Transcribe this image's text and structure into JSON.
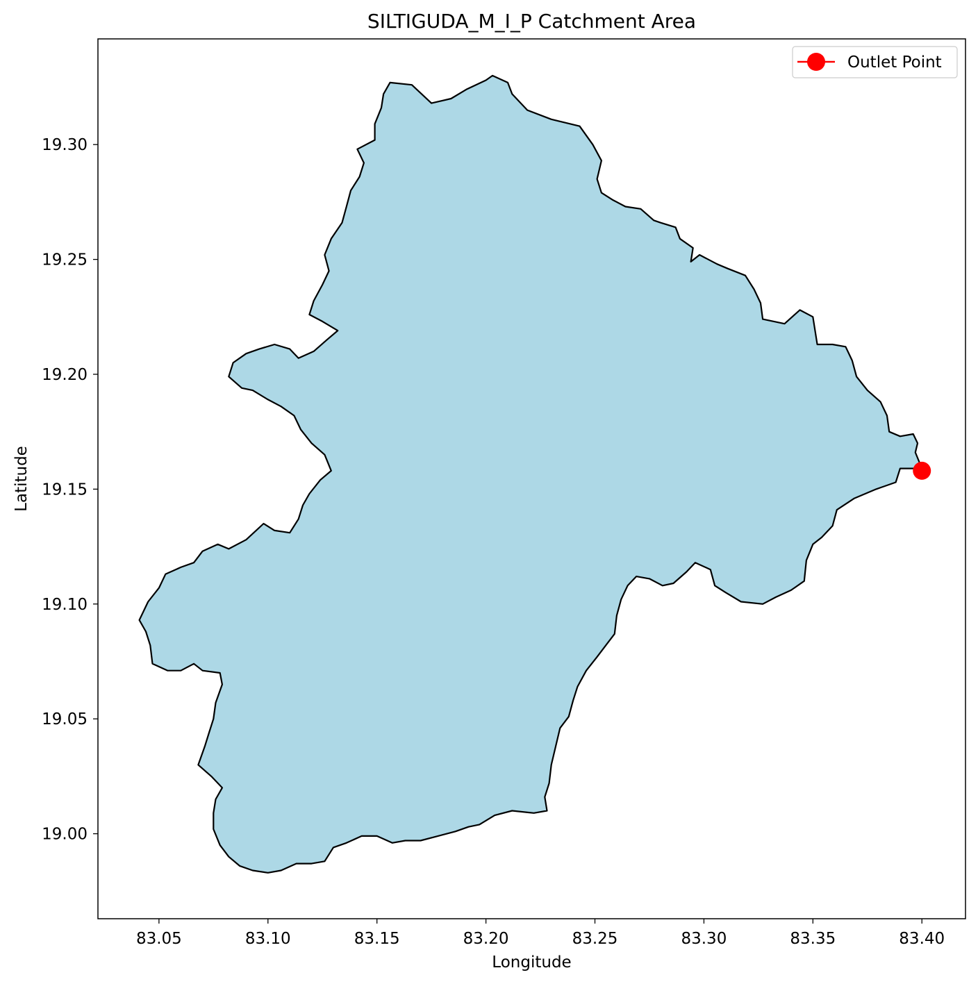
{
  "chart_data": {
    "type": "map",
    "title": "SILTIGUDA_M_I_P Catchment Area",
    "xlabel": "Longitude",
    "ylabel": "Latitude",
    "xlim": [
      83.022,
      83.42
    ],
    "ylim": [
      18.963,
      19.346
    ],
    "xticks": [
      83.05,
      83.1,
      83.15,
      83.2,
      83.25,
      83.3,
      83.35,
      83.4
    ],
    "xtick_labels": [
      "83.05",
      "83.10",
      "83.15",
      "83.20",
      "83.25",
      "83.30",
      "83.35",
      "83.40"
    ],
    "yticks": [
      19.0,
      19.05,
      19.1,
      19.15,
      19.2,
      19.25,
      19.3
    ],
    "ytick_labels": [
      "19.00",
      "19.05",
      "19.10",
      "19.15",
      "19.20",
      "19.25",
      "19.30"
    ],
    "grid": false,
    "legend": {
      "position": "top-right",
      "entries": [
        "Outlet Point"
      ]
    },
    "catchment": {
      "fill": "#add8e6",
      "edge": "#000000",
      "boundary": [
        [
          83.156,
          19.327
        ],
        [
          83.166,
          19.326
        ],
        [
          83.175,
          19.318
        ],
        [
          83.184,
          19.32
        ],
        [
          83.191,
          19.324
        ],
        [
          83.2,
          19.328
        ],
        [
          83.203,
          19.33
        ],
        [
          83.21,
          19.327
        ],
        [
          83.212,
          19.322
        ],
        [
          83.219,
          19.315
        ],
        [
          83.23,
          19.311
        ],
        [
          83.243,
          19.308
        ],
        [
          83.249,
          19.3
        ],
        [
          83.253,
          19.293
        ],
        [
          83.251,
          19.285
        ],
        [
          83.253,
          19.279
        ],
        [
          83.258,
          19.276
        ],
        [
          83.264,
          19.273
        ],
        [
          83.271,
          19.272
        ],
        [
          83.277,
          19.267
        ],
        [
          83.28,
          19.266
        ],
        [
          83.287,
          19.264
        ],
        [
          83.289,
          19.259
        ],
        [
          83.295,
          19.255
        ],
        [
          83.294,
          19.249
        ],
        [
          83.298,
          19.252
        ],
        [
          83.306,
          19.248
        ],
        [
          83.311,
          19.246
        ],
        [
          83.319,
          19.243
        ],
        [
          83.323,
          19.237
        ],
        [
          83.326,
          19.231
        ],
        [
          83.327,
          19.224
        ],
        [
          83.337,
          19.222
        ],
        [
          83.344,
          19.228
        ],
        [
          83.35,
          19.225
        ],
        [
          83.352,
          19.213
        ],
        [
          83.359,
          19.213
        ],
        [
          83.365,
          19.212
        ],
        [
          83.368,
          19.206
        ],
        [
          83.37,
          19.199
        ],
        [
          83.375,
          19.193
        ],
        [
          83.381,
          19.188
        ],
        [
          83.384,
          19.182
        ],
        [
          83.385,
          19.175
        ],
        [
          83.39,
          19.173
        ],
        [
          83.396,
          19.174
        ],
        [
          83.398,
          19.17
        ],
        [
          83.397,
          19.166
        ],
        [
          83.4,
          19.159
        ],
        [
          83.39,
          19.159
        ],
        [
          83.388,
          19.153
        ],
        [
          83.379,
          19.15
        ],
        [
          83.369,
          19.146
        ],
        [
          83.361,
          19.141
        ],
        [
          83.359,
          19.134
        ],
        [
          83.354,
          19.129
        ],
        [
          83.35,
          19.126
        ],
        [
          83.347,
          19.119
        ],
        [
          83.346,
          19.11
        ],
        [
          83.34,
          19.106
        ],
        [
          83.333,
          19.103
        ],
        [
          83.327,
          19.1
        ],
        [
          83.317,
          19.101
        ],
        [
          83.31,
          19.105
        ],
        [
          83.305,
          19.108
        ],
        [
          83.303,
          19.115
        ],
        [
          83.296,
          19.118
        ],
        [
          83.292,
          19.114
        ],
        [
          83.286,
          19.109
        ],
        [
          83.281,
          19.108
        ],
        [
          83.275,
          19.111
        ],
        [
          83.269,
          19.112
        ],
        [
          83.265,
          19.108
        ],
        [
          83.262,
          19.102
        ],
        [
          83.26,
          19.095
        ],
        [
          83.259,
          19.087
        ],
        [
          83.255,
          19.082
        ],
        [
          83.251,
          19.077
        ],
        [
          83.246,
          19.071
        ],
        [
          83.242,
          19.064
        ],
        [
          83.24,
          19.058
        ],
        [
          83.238,
          19.051
        ],
        [
          83.234,
          19.046
        ],
        [
          83.232,
          19.038
        ],
        [
          83.23,
          19.03
        ],
        [
          83.229,
          19.022
        ],
        [
          83.227,
          19.016
        ],
        [
          83.228,
          19.01
        ],
        [
          83.222,
          19.009
        ],
        [
          83.212,
          19.01
        ],
        [
          83.204,
          19.008
        ],
        [
          83.197,
          19.004
        ],
        [
          83.192,
          19.003
        ],
        [
          83.186,
          19.001
        ],
        [
          83.178,
          18.999
        ],
        [
          83.17,
          18.997
        ],
        [
          83.163,
          18.997
        ],
        [
          83.157,
          18.996
        ],
        [
          83.15,
          18.999
        ],
        [
          83.143,
          18.999
        ],
        [
          83.136,
          18.996
        ],
        [
          83.13,
          18.994
        ],
        [
          83.126,
          18.988
        ],
        [
          83.12,
          18.987
        ],
        [
          83.113,
          18.987
        ],
        [
          83.106,
          18.984
        ],
        [
          83.1,
          18.983
        ],
        [
          83.093,
          18.984
        ],
        [
          83.087,
          18.986
        ],
        [
          83.082,
          18.99
        ],
        [
          83.078,
          18.995
        ],
        [
          83.075,
          19.002
        ],
        [
          83.075,
          19.009
        ],
        [
          83.076,
          19.015
        ],
        [
          83.079,
          19.02
        ],
        [
          83.074,
          19.025
        ],
        [
          83.068,
          19.03
        ],
        [
          83.071,
          19.038
        ],
        [
          83.073,
          19.044
        ],
        [
          83.075,
          19.05
        ],
        [
          83.076,
          19.057
        ],
        [
          83.079,
          19.065
        ],
        [
          83.078,
          19.07
        ],
        [
          83.07,
          19.071
        ],
        [
          83.066,
          19.074
        ],
        [
          83.06,
          19.071
        ],
        [
          83.054,
          19.071
        ],
        [
          83.047,
          19.074
        ],
        [
          83.046,
          19.082
        ],
        [
          83.044,
          19.088
        ],
        [
          83.041,
          19.093
        ],
        [
          83.045,
          19.101
        ],
        [
          83.05,
          19.107
        ],
        [
          83.053,
          19.113
        ],
        [
          83.06,
          19.116
        ],
        [
          83.066,
          19.118
        ],
        [
          83.07,
          19.123
        ],
        [
          83.077,
          19.126
        ],
        [
          83.082,
          19.124
        ],
        [
          83.09,
          19.128
        ],
        [
          83.098,
          19.135
        ],
        [
          83.103,
          19.132
        ],
        [
          83.11,
          19.131
        ],
        [
          83.114,
          19.137
        ],
        [
          83.116,
          19.143
        ],
        [
          83.119,
          19.148
        ],
        [
          83.124,
          19.154
        ],
        [
          83.129,
          19.158
        ],
        [
          83.126,
          19.165
        ],
        [
          83.12,
          19.17
        ],
        [
          83.115,
          19.176
        ],
        [
          83.112,
          19.182
        ],
        [
          83.106,
          19.186
        ],
        [
          83.1,
          19.189
        ],
        [
          83.093,
          19.193
        ],
        [
          83.088,
          19.194
        ],
        [
          83.082,
          19.199
        ],
        [
          83.084,
          19.205
        ],
        [
          83.09,
          19.209
        ],
        [
          83.096,
          19.211
        ],
        [
          83.103,
          19.213
        ],
        [
          83.11,
          19.211
        ],
        [
          83.114,
          19.207
        ],
        [
          83.121,
          19.21
        ],
        [
          83.127,
          19.215
        ],
        [
          83.132,
          19.219
        ],
        [
          83.125,
          19.223
        ],
        [
          83.119,
          19.226
        ],
        [
          83.121,
          19.232
        ],
        [
          83.125,
          19.239
        ],
        [
          83.128,
          19.245
        ],
        [
          83.126,
          19.252
        ],
        [
          83.129,
          19.259
        ],
        [
          83.134,
          19.266
        ],
        [
          83.136,
          19.273
        ],
        [
          83.138,
          19.28
        ],
        [
          83.142,
          19.286
        ],
        [
          83.144,
          19.292
        ],
        [
          83.141,
          19.298
        ],
        [
          83.149,
          19.302
        ],
        [
          83.149,
          19.309
        ],
        [
          83.152,
          19.316
        ],
        [
          83.153,
          19.322
        ]
      ]
    },
    "outlet_point": {
      "x": 83.4,
      "y": 19.158,
      "color": "#ff0000"
    }
  }
}
